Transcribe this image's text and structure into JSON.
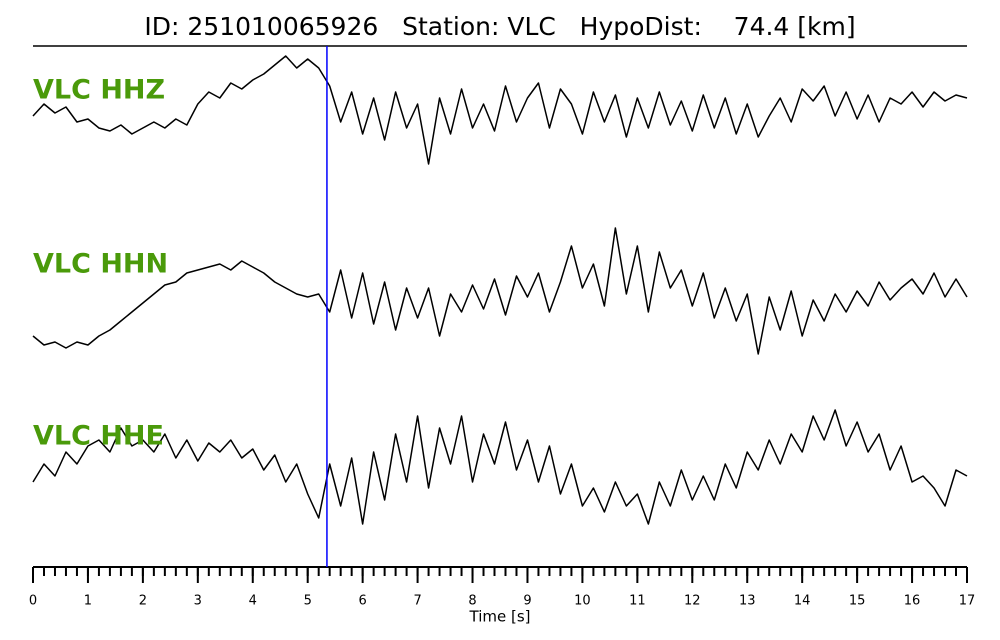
{
  "chart_data": {
    "type": "waveform",
    "title": "ID: 251010065926   Station: VLC   HypoDist:    74.4 [km]",
    "xlabel": "Time [s]",
    "xlim": [
      0,
      17
    ],
    "xticks": [
      0,
      1,
      2,
      3,
      4,
      5,
      6,
      7,
      8,
      9,
      10,
      11,
      12,
      13,
      14,
      15,
      16,
      17
    ],
    "minor_tick_step": 0.2,
    "label_color": "#4a9a0a",
    "pick": {
      "time": 5.35,
      "color": "#0000ff"
    },
    "x": [
      0,
      0.2,
      0.4,
      0.6,
      0.8,
      1,
      1.2,
      1.4,
      1.6,
      1.8,
      2,
      2.2,
      2.4,
      2.6,
      2.8,
      3,
      3.2,
      3.4,
      3.6,
      3.8,
      4,
      4.2,
      4.4,
      4.6,
      4.8,
      5,
      5.2,
      5.4,
      5.6,
      5.8,
      6,
      6.2,
      6.4,
      6.6,
      6.8,
      7,
      7.2,
      7.4,
      7.6,
      7.8,
      8,
      8.2,
      8.4,
      8.6,
      8.8,
      9,
      9.2,
      9.4,
      9.6,
      9.8,
      10,
      10.2,
      10.4,
      10.6,
      10.8,
      11,
      11.2,
      11.4,
      11.6,
      11.8,
      12,
      12.2,
      12.4,
      12.6,
      12.8,
      13,
      13.2,
      13.4,
      13.6,
      13.8,
      14,
      14.2,
      14.4,
      14.6,
      14.8,
      15,
      15.2,
      15.4,
      15.6,
      15.8,
      16,
      16.2,
      16.4,
      16.6,
      16.8,
      17
    ],
    "series": [
      {
        "name": "VLC HHZ",
        "color": "#000000",
        "values": [
          -0.1,
          0.1,
          -0.05,
          0.05,
          -0.2,
          -0.15,
          -0.3,
          -0.35,
          -0.25,
          -0.4,
          -0.3,
          -0.2,
          -0.3,
          -0.15,
          -0.25,
          0.1,
          0.3,
          0.2,
          0.45,
          0.35,
          0.5,
          0.6,
          0.75,
          0.9,
          0.7,
          0.85,
          0.7,
          0.4,
          -0.2,
          0.3,
          -0.4,
          0.2,
          -0.5,
          0.3,
          -0.3,
          0.1,
          -0.9,
          0.2,
          -0.4,
          0.35,
          -0.3,
          0.1,
          -0.35,
          0.4,
          -0.2,
          0.2,
          0.45,
          -0.3,
          0.35,
          0.1,
          -0.4,
          0.3,
          -0.2,
          0.25,
          -0.45,
          0.2,
          -0.3,
          0.3,
          -0.25,
          0.15,
          -0.35,
          0.25,
          -0.3,
          0.2,
          -0.4,
          0.1,
          -0.45,
          -0.1,
          0.2,
          -0.2,
          0.35,
          0.15,
          0.4,
          -0.1,
          0.3,
          -0.15,
          0.25,
          -0.2,
          0.2,
          0.1,
          0.3,
          0.05,
          0.3,
          0.15,
          0.25,
          0.2
        ]
      },
      {
        "name": "VLC HHN",
        "color": "#000000",
        "values": [
          -0.6,
          -0.75,
          -0.7,
          -0.8,
          -0.7,
          -0.75,
          -0.6,
          -0.5,
          -0.35,
          -0.2,
          -0.05,
          0.1,
          0.25,
          0.3,
          0.45,
          0.5,
          0.55,
          0.6,
          0.5,
          0.65,
          0.55,
          0.45,
          0.3,
          0.2,
          0.1,
          0.05,
          0.1,
          -0.2,
          0.5,
          -0.3,
          0.45,
          -0.4,
          0.3,
          -0.5,
          0.2,
          -0.3,
          0.2,
          -0.6,
          0.1,
          -0.2,
          0.25,
          -0.15,
          0.35,
          -0.25,
          0.4,
          0.05,
          0.45,
          -0.2,
          0.3,
          0.9,
          0.2,
          0.6,
          -0.1,
          1.2,
          0.1,
          0.9,
          -0.2,
          0.8,
          0.2,
          0.5,
          -0.1,
          0.45,
          -0.3,
          0.2,
          -0.35,
          0.1,
          -0.9,
          0.05,
          -0.5,
          0.15,
          -0.6,
          0.0,
          -0.35,
          0.1,
          -0.2,
          0.15,
          -0.1,
          0.3,
          0.0,
          0.2,
          0.35,
          0.1,
          0.45,
          0.05,
          0.35,
          0.05
        ]
      },
      {
        "name": "VLC HHE",
        "color": "#000000",
        "values": [
          -0.2,
          0.1,
          -0.1,
          0.3,
          0.1,
          0.4,
          0.5,
          0.3,
          0.7,
          0.4,
          0.5,
          0.3,
          0.6,
          0.2,
          0.5,
          0.15,
          0.45,
          0.3,
          0.5,
          0.2,
          0.35,
          0.0,
          0.25,
          -0.2,
          0.1,
          -0.4,
          -0.8,
          0.1,
          -0.6,
          0.2,
          -0.9,
          0.3,
          -0.5,
          0.6,
          -0.2,
          0.9,
          -0.3,
          0.7,
          0.1,
          0.9,
          -0.2,
          0.6,
          0.1,
          0.8,
          0.0,
          0.5,
          -0.2,
          0.4,
          -0.4,
          0.1,
          -0.6,
          -0.3,
          -0.7,
          -0.2,
          -0.6,
          -0.4,
          -0.9,
          -0.2,
          -0.6,
          0.0,
          -0.5,
          -0.1,
          -0.5,
          0.1,
          -0.3,
          0.3,
          0.0,
          0.5,
          0.1,
          0.6,
          0.3,
          0.9,
          0.5,
          1.0,
          0.4,
          0.8,
          0.3,
          0.6,
          0.0,
          0.4,
          -0.2,
          -0.1,
          -0.3,
          -0.6,
          0.0,
          -0.1
        ]
      }
    ]
  }
}
